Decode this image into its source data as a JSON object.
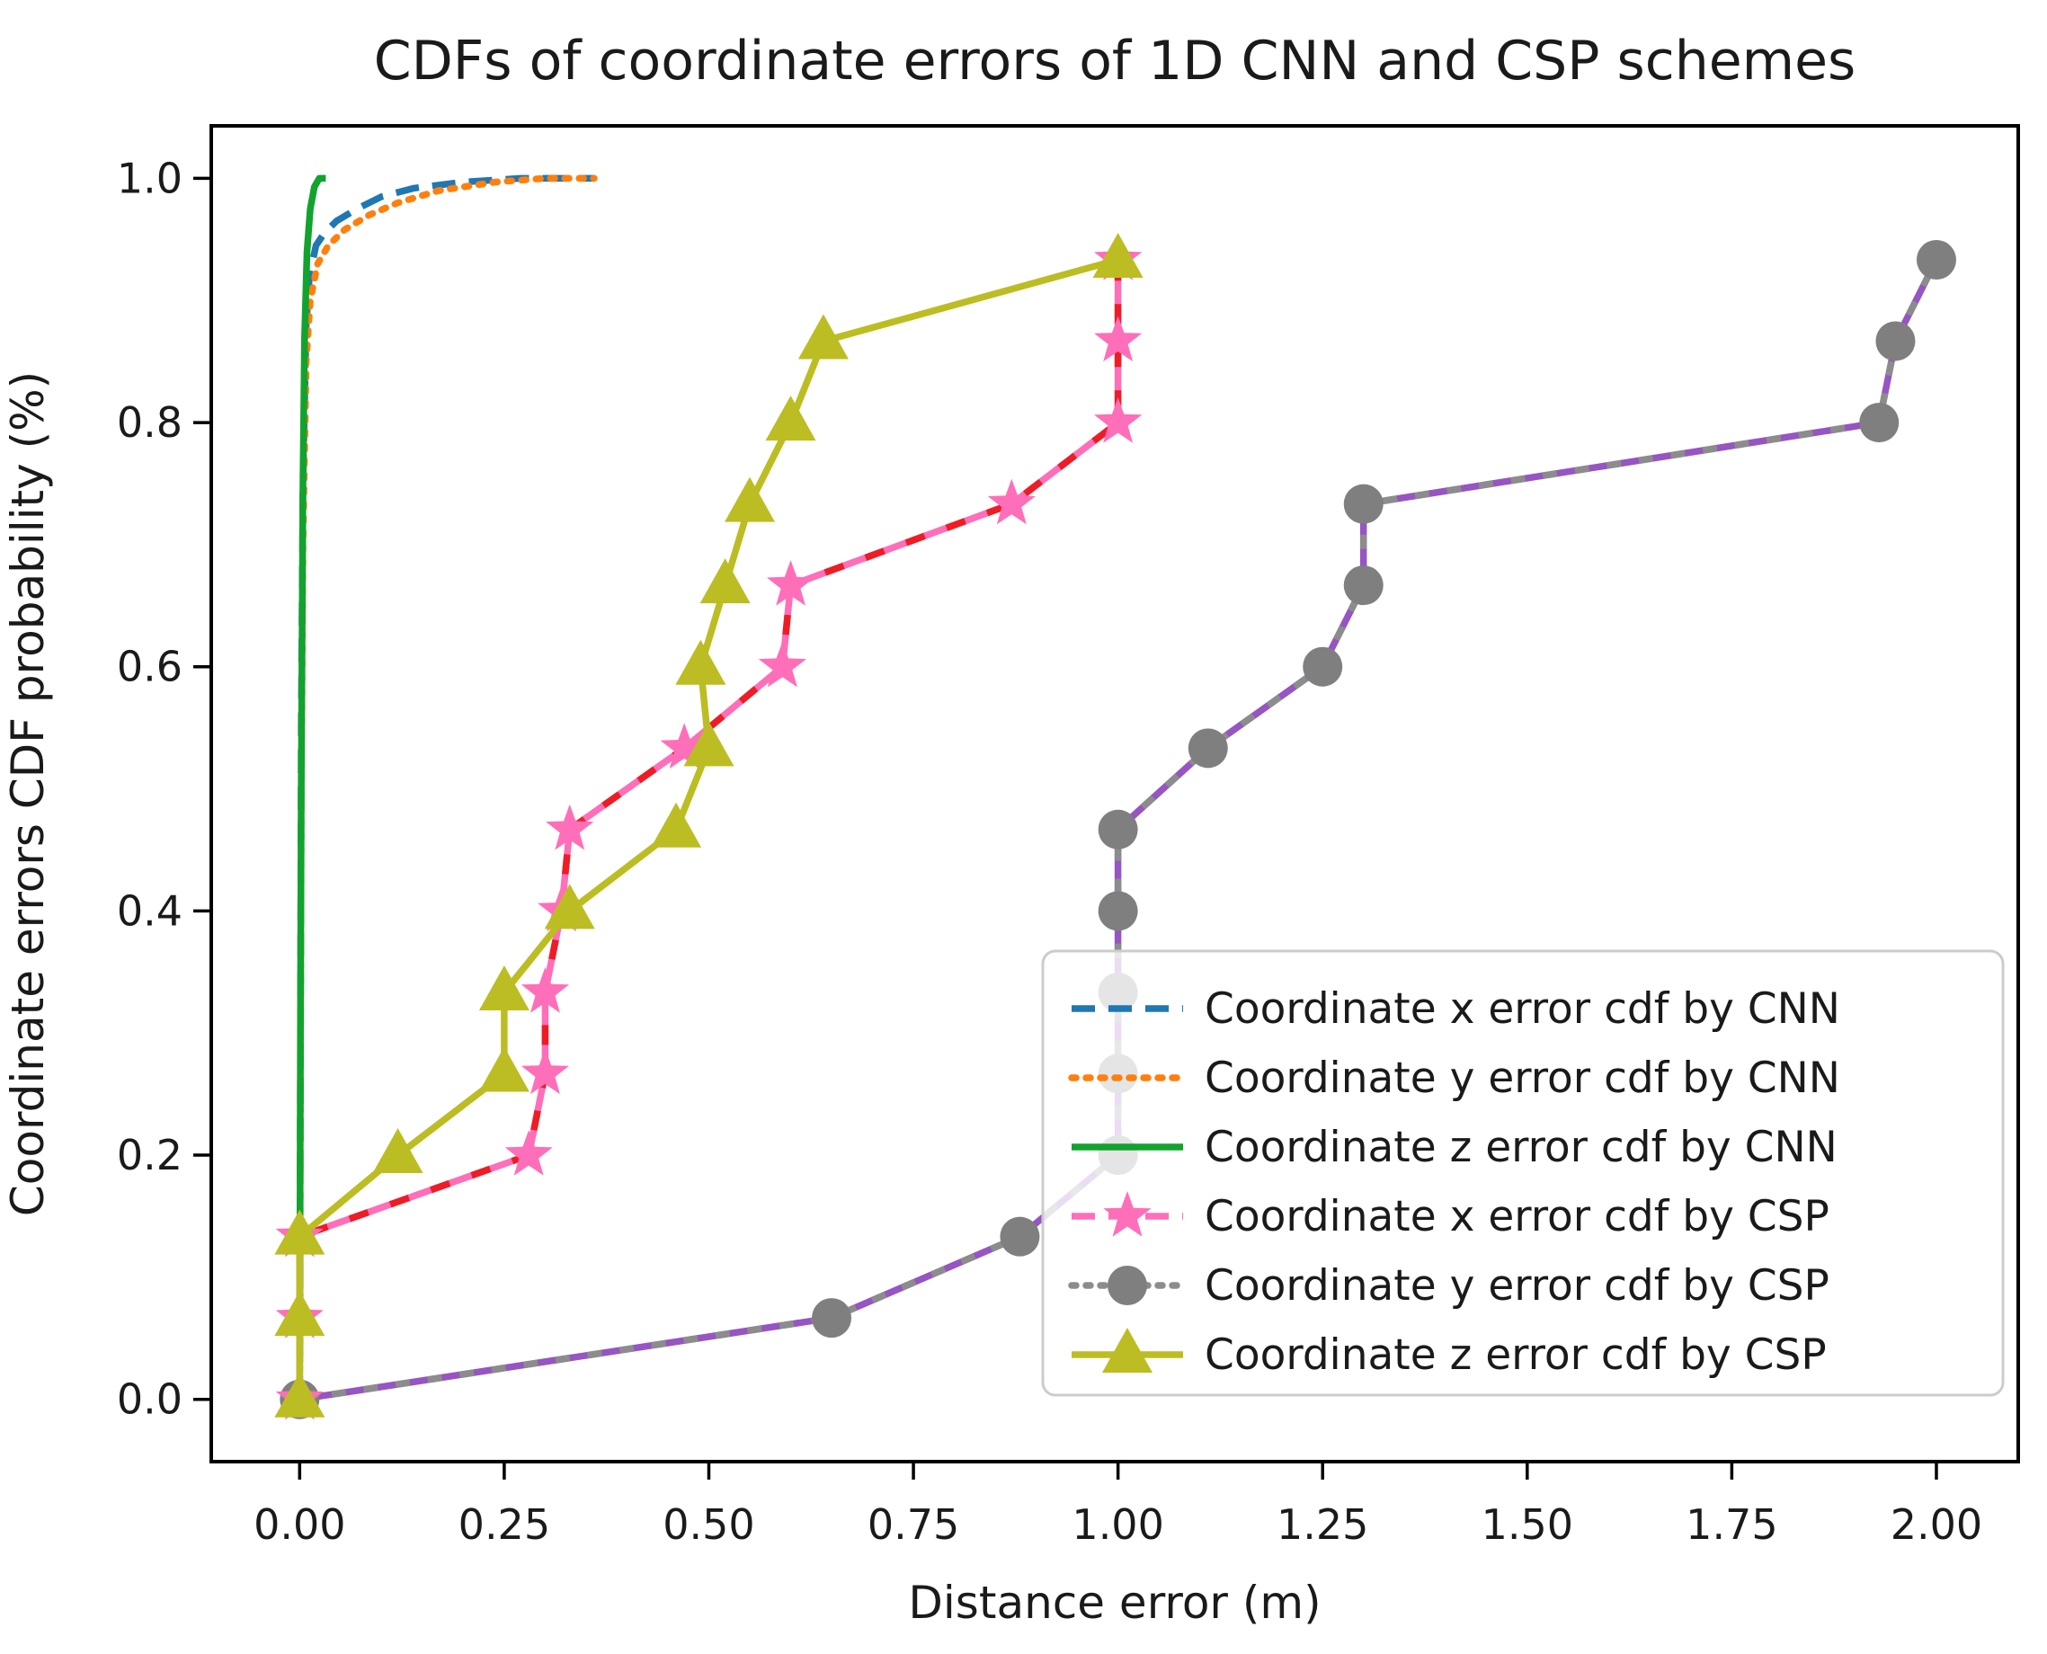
{
  "chart_data": {
    "type": "line",
    "title": "CDFs of coordinate errors of 1D CNN and CSP schemes",
    "xlabel": "Distance error (m)",
    "ylabel": "Coordinate errors CDF probability (%)",
    "xlim": [
      -0.108,
      2.1
    ],
    "ylim": [
      -0.051,
      1.043
    ],
    "grid": false,
    "x_ticks": {
      "values": [
        0,
        0.25,
        0.5,
        0.75,
        1.0,
        1.25,
        1.5,
        1.75,
        2.0
      ],
      "labels": [
        "0.00",
        "0.25",
        "0.50",
        "0.75",
        "1.00",
        "1.25",
        "1.50",
        "1.75",
        "2.00"
      ]
    },
    "y_ticks": {
      "values": [
        0,
        0.2,
        0.4,
        0.6,
        0.8,
        1.0
      ],
      "labels": [
        "0.0",
        "0.2",
        "0.4",
        "0.6",
        "0.8",
        "1.0"
      ]
    },
    "legend": {
      "position": "lower right",
      "border_color": "#cccccc",
      "fill_color": "#ffffff",
      "fill_opacity": 0.8
    },
    "series": [
      {
        "id": "cnn_x",
        "label": "Coordinate x error cdf by CNN",
        "color": "#1f77b4",
        "dash": "dashed",
        "marker": null,
        "points": [
          [
            0,
            0
          ],
          [
            0.002,
            0.55
          ],
          [
            0.004,
            0.75
          ],
          [
            0.008,
            0.88
          ],
          [
            0.012,
            0.92
          ],
          [
            0.02,
            0.945
          ],
          [
            0.03,
            0.955
          ],
          [
            0.045,
            0.965
          ],
          [
            0.07,
            0.975
          ],
          [
            0.1,
            0.985
          ],
          [
            0.14,
            0.992
          ],
          [
            0.2,
            0.997
          ],
          [
            0.27,
            1.0
          ],
          [
            0.36,
            1.0
          ]
        ]
      },
      {
        "id": "cnn_y",
        "label": "Coordinate y error cdf by CNN",
        "color": "#ff7f0e",
        "dash": "dotted",
        "marker": null,
        "points": [
          [
            0,
            0
          ],
          [
            0.002,
            0.5
          ],
          [
            0.004,
            0.7
          ],
          [
            0.008,
            0.85
          ],
          [
            0.013,
            0.9
          ],
          [
            0.022,
            0.93
          ],
          [
            0.035,
            0.945
          ],
          [
            0.055,
            0.958
          ],
          [
            0.085,
            0.97
          ],
          [
            0.12,
            0.98
          ],
          [
            0.17,
            0.99
          ],
          [
            0.24,
            0.997
          ],
          [
            0.3,
            1.0
          ],
          [
            0.36,
            1.0
          ]
        ]
      },
      {
        "id": "cnn_z",
        "label": "Coordinate z error cdf by CNN",
        "color": "#12a32e",
        "dash": "solid",
        "marker": null,
        "points": [
          [
            0,
            0
          ],
          [
            0.001,
            0.3
          ],
          [
            0.002,
            0.5
          ],
          [
            0.004,
            0.75
          ],
          [
            0.006,
            0.87
          ],
          [
            0.009,
            0.94
          ],
          [
            0.013,
            0.975
          ],
          [
            0.018,
            0.993
          ],
          [
            0.024,
            1.0
          ],
          [
            0.032,
            1.0
          ]
        ]
      },
      {
        "id": "csp_y",
        "label": "Coordinate y error cdf by CSP",
        "color": "#9655c2",
        "dash": "solid",
        "overlay_color": "#8c8c8c",
        "overlay_dash": "16 20",
        "marker": "circle",
        "marker_color": "#7f7f7f",
        "legend_color": "#8c8c8c",
        "legend_dash": "dotted",
        "points": [
          [
            0,
            0
          ],
          [
            0.65,
            0.0667
          ],
          [
            0.88,
            0.1333
          ],
          [
            1.0,
            0.2
          ],
          [
            1.0,
            0.2667
          ],
          [
            1.0,
            0.3333
          ],
          [
            1.0,
            0.4
          ],
          [
            1.0,
            0.4667
          ],
          [
            1.11,
            0.5333
          ],
          [
            1.25,
            0.6
          ],
          [
            1.3,
            0.6667
          ],
          [
            1.3,
            0.7333
          ],
          [
            1.93,
            0.8
          ],
          [
            1.95,
            0.8667
          ],
          [
            2.0,
            0.9333
          ]
        ]
      },
      {
        "id": "csp_x",
        "label": "Coordinate x error cdf by CSP",
        "color": "#ff6eb8",
        "dash": "solid",
        "overlay_color": "#ee1c25",
        "overlay_dash": "22 26",
        "marker": "star",
        "marker_color": "#ff6eb8",
        "legend_color": "#ff6eb8",
        "legend_dash": "dashed",
        "points": [
          [
            0,
            0
          ],
          [
            0,
            0.0667
          ],
          [
            0,
            0.1333
          ],
          [
            0.28,
            0.2
          ],
          [
            0.3,
            0.2667
          ],
          [
            0.3,
            0.3333
          ],
          [
            0.32,
            0.4
          ],
          [
            0.33,
            0.4667
          ],
          [
            0.47,
            0.5333
          ],
          [
            0.59,
            0.6
          ],
          [
            0.6,
            0.6667
          ],
          [
            0.87,
            0.7333
          ],
          [
            1.0,
            0.8
          ],
          [
            1.0,
            0.8667
          ],
          [
            1.0,
            0.9333
          ]
        ]
      },
      {
        "id": "csp_z",
        "label": "Coordinate z error cdf by CSP",
        "color": "#bcbd22",
        "dash": "solid",
        "marker": "triangle",
        "marker_color": "#bcbd22",
        "legend_color": "#bcbd22",
        "legend_dash": "solid",
        "points": [
          [
            0,
            0
          ],
          [
            0,
            0.0667
          ],
          [
            0,
            0.1333
          ],
          [
            0.12,
            0.2
          ],
          [
            0.25,
            0.2667
          ],
          [
            0.25,
            0.3333
          ],
          [
            0.33,
            0.4
          ],
          [
            0.46,
            0.4667
          ],
          [
            0.5,
            0.5333
          ],
          [
            0.49,
            0.6
          ],
          [
            0.52,
            0.6667
          ],
          [
            0.55,
            0.7333
          ],
          [
            0.6,
            0.8
          ],
          [
            0.64,
            0.8667
          ],
          [
            1.0,
            0.9333
          ]
        ]
      }
    ],
    "legend_order": [
      "cnn_x",
      "cnn_y",
      "cnn_z",
      "csp_x",
      "csp_y",
      "csp_z"
    ],
    "draw_order": [
      "cnn_x",
      "cnn_y",
      "cnn_z",
      "csp_y",
      "csp_x",
      "csp_z"
    ]
  }
}
